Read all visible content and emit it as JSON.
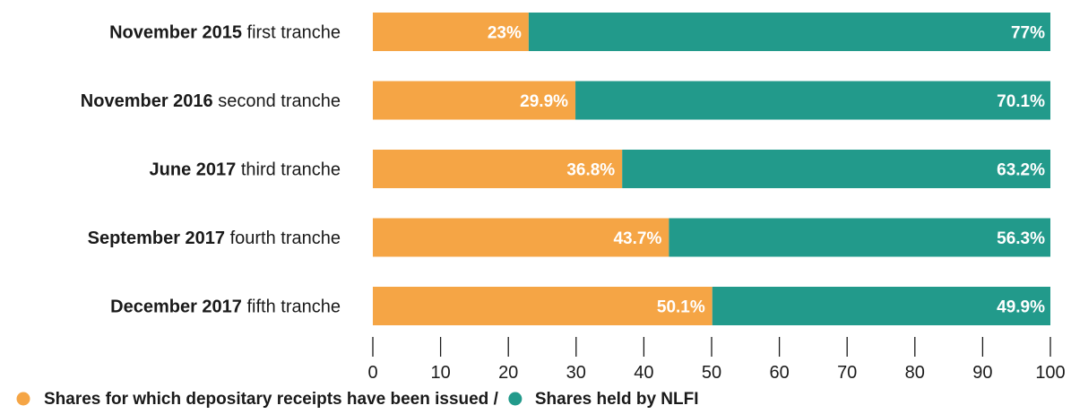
{
  "chart_data": {
    "type": "bar",
    "orientation": "horizontal",
    "stacked": true,
    "categories": [
      {
        "bold": "November 2015",
        "rest": " first tranche"
      },
      {
        "bold": "November 2016",
        "rest": " second tranche"
      },
      {
        "bold": "June 2017",
        "rest": " third tranche"
      },
      {
        "bold": "September 2017",
        "rest": " fourth tranche"
      },
      {
        "bold": "December 2017",
        "rest": " fifth tranche"
      }
    ],
    "series": [
      {
        "name": "Shares for which depositary receipts have been issued",
        "color": "#f5a545",
        "values": [
          23,
          29.9,
          36.8,
          43.7,
          50.1
        ],
        "labels": [
          "23%",
          "29.9%",
          "36.8%",
          "43.7%",
          "50.1%"
        ]
      },
      {
        "name": "Shares held by NLFI",
        "color": "#229a8b",
        "values": [
          77,
          70.1,
          63.2,
          56.3,
          49.9
        ],
        "labels": [
          "77%",
          "70.1%",
          "63.2%",
          "56.3%",
          "49.9%"
        ]
      }
    ],
    "xlim": [
      0,
      100
    ],
    "xticks": [
      0,
      10,
      20,
      30,
      40,
      50,
      60,
      70,
      80,
      90,
      100
    ],
    "grid": false,
    "legend": {
      "position": "bottom-left",
      "separator": " /",
      "items": [
        {
          "label": "Shares for which depositary receipts have been issued",
          "color": "#f5a545"
        },
        {
          "label": "Shares held by NLFI",
          "color": "#229a8b"
        }
      ]
    }
  }
}
